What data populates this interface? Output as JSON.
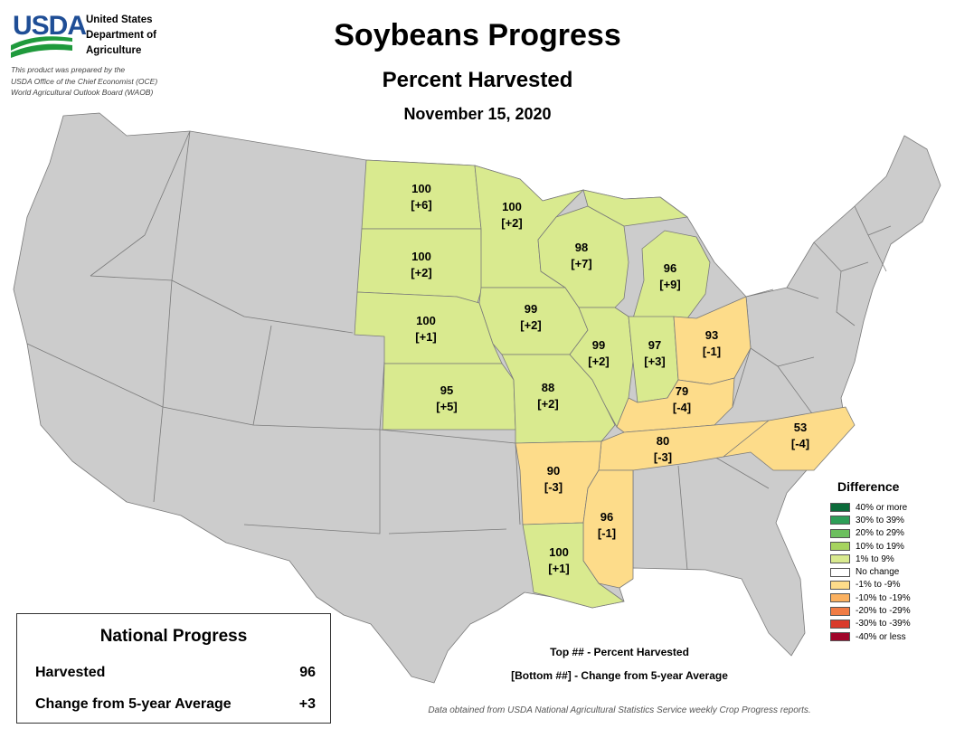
{
  "header": {
    "logo_text": "USDA",
    "agency_lines": [
      "United States",
      "Department of",
      "Agriculture"
    ],
    "disclaimer_lines": [
      "This product was prepared by the",
      "USDA Office of the Chief Economist (OCE)",
      "World Agricultural Outlook Board (WAOB)"
    ],
    "title": "Soybeans Progress",
    "subtitle": "Percent Harvested",
    "date": "November 15, 2020"
  },
  "colors": {
    "land": "#cccccc",
    "border": "#7a7a7a",
    "positive_1_9": "#d9ea8f",
    "negative_1_9": "#fddc8a"
  },
  "states": [
    {
      "state": "North Dakota",
      "value": "100",
      "change": "[+6]",
      "category": "1% to 9%"
    },
    {
      "state": "Minnesota",
      "value": "100",
      "change": "[+2]",
      "category": "1% to 9%"
    },
    {
      "state": "South Dakota",
      "value": "100",
      "change": "[+2]",
      "category": "1% to 9%"
    },
    {
      "state": "Wisconsin",
      "value": "98",
      "change": "[+7]",
      "category": "1% to 9%"
    },
    {
      "state": "Michigan",
      "value": "96",
      "change": "[+9]",
      "category": "1% to 9%"
    },
    {
      "state": "Nebraska",
      "value": "100",
      "change": "[+1]",
      "category": "1% to 9%"
    },
    {
      "state": "Iowa",
      "value": "99",
      "change": "[+2]",
      "category": "1% to 9%"
    },
    {
      "state": "Illinois",
      "value": "99",
      "change": "[+2]",
      "category": "1% to 9%"
    },
    {
      "state": "Indiana",
      "value": "97",
      "change": "[+3]",
      "category": "1% to 9%"
    },
    {
      "state": "Ohio",
      "value": "93",
      "change": "[-1]",
      "category": "-1% to -9%"
    },
    {
      "state": "Kansas",
      "value": "95",
      "change": "[+5]",
      "category": "1% to 9%"
    },
    {
      "state": "Missouri",
      "value": "88",
      "change": "[+2]",
      "category": "1% to 9%"
    },
    {
      "state": "Kentucky",
      "value": "79",
      "change": "[-4]",
      "category": "-1% to -9%"
    },
    {
      "state": "Tennessee",
      "value": "80",
      "change": "[-3]",
      "category": "-1% to -9%"
    },
    {
      "state": "North Carolina",
      "value": "53",
      "change": "[-4]",
      "category": "-1% to -9%"
    },
    {
      "state": "Arkansas",
      "value": "90",
      "change": "[-3]",
      "category": "-1% to -9%"
    },
    {
      "state": "Mississippi",
      "value": "96",
      "change": "[-1]",
      "category": "-1% to -9%"
    },
    {
      "state": "Louisiana",
      "value": "100",
      "change": "[+1]",
      "category": "1% to 9%"
    }
  ],
  "legend": {
    "title": "Difference",
    "items": [
      {
        "label": "40% or more",
        "color": "#0b6b3a"
      },
      {
        "label": "30% to 39%",
        "color": "#2e9e58"
      },
      {
        "label": "20% to 29%",
        "color": "#6cbf5e"
      },
      {
        "label": "10% to 19%",
        "color": "#a6d45f"
      },
      {
        "label": "1% to 9%",
        "color": "#d9ea8f"
      },
      {
        "label": "No change",
        "color": "#ffffff"
      },
      {
        "label": "-1% to -9%",
        "color": "#fddc8a"
      },
      {
        "label": "-10% to -19%",
        "color": "#fbb160"
      },
      {
        "label": "-20% to -29%",
        "color": "#f07c45"
      },
      {
        "label": "-30% to -39%",
        "color": "#d93b2b"
      },
      {
        "label": "-40% or less",
        "color": "#a0062a"
      }
    ]
  },
  "national": {
    "title": "National Progress",
    "harvested_label": "Harvested",
    "harvested_value": "96",
    "change_label": "Change from 5-year Average",
    "change_value": "+3"
  },
  "key": {
    "top": "Top ## - Percent Harvested",
    "bottom": "[Bottom ##] - Change from 5-year Average"
  },
  "source": "Data obtained from USDA National Agricultural Statistics Service weekly Crop Progress reports."
}
